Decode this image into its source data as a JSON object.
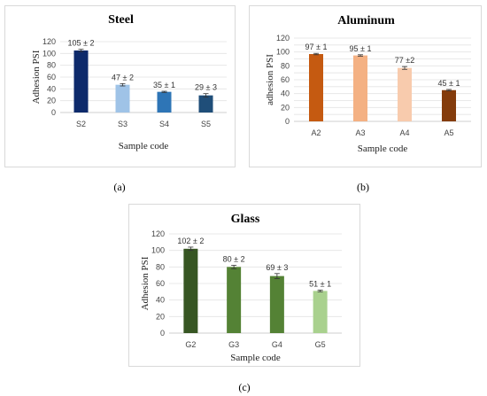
{
  "chart_data": [
    {
      "type": "bar",
      "title": "Steel",
      "xlabel": "Sample code",
      "ylabel": "Adhesion PSI",
      "categories": [
        "S2",
        "S3",
        "S4",
        "S5"
      ],
      "values": [
        105,
        47,
        35,
        29
      ],
      "errors": [
        2,
        2,
        1,
        3
      ],
      "labels": [
        "105 ± 2",
        "47 ± 2",
        "35 ± 1",
        "29 ± 3"
      ],
      "colors": [
        "#0d2a6b",
        "#9fc3e7",
        "#2e75b6",
        "#1f4e79"
      ],
      "ylim": [
        0,
        120
      ],
      "yticks": [
        0,
        20,
        40,
        60,
        80,
        100,
        120
      ],
      "grid": true,
      "caption": "(a)"
    },
    {
      "type": "bar",
      "title": "Aluminum",
      "xlabel": "Sample code",
      "ylabel": "adhesion PSI",
      "categories": [
        "A2",
        "A3",
        "A4",
        "A5"
      ],
      "values": [
        97,
        95,
        77,
        45
      ],
      "errors": [
        1,
        1,
        2,
        1
      ],
      "labels": [
        "97 ± 1",
        "95 ± 1",
        "77 ±2",
        "45 ± 1"
      ],
      "colors": [
        "#c55a11",
        "#f4b183",
        "#f8cbad",
        "#843c0c"
      ],
      "ylim": [
        0,
        120
      ],
      "yticks": [
        0,
        10,
        20,
        30,
        40,
        50,
        60,
        70,
        80,
        90,
        100,
        110,
        120
      ],
      "ytick_labels_shown": [
        0,
        20,
        40,
        60,
        80,
        100,
        120
      ],
      "grid": true,
      "caption": "(b)"
    },
    {
      "type": "bar",
      "title": "Glass",
      "xlabel": "Sample code",
      "ylabel": "Adhesion PSI",
      "categories": [
        "G2",
        "G3",
        "G4",
        "G5"
      ],
      "values": [
        102,
        80,
        69,
        51
      ],
      "errors": [
        2,
        2,
        3,
        1
      ],
      "labels": [
        "102 ± 2",
        "80 ± 2",
        "69 ± 3",
        "51 ± 1"
      ],
      "colors": [
        "#375623",
        "#548235",
        "#548235",
        "#a9d18e"
      ],
      "ylim": [
        0,
        120
      ],
      "yticks": [
        0,
        20,
        40,
        60,
        80,
        100,
        120
      ],
      "grid": true,
      "caption": "(c)"
    }
  ]
}
